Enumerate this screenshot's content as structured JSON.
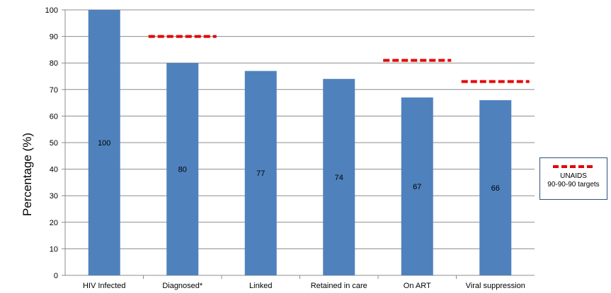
{
  "chart_data": {
    "type": "bar",
    "ylabel": "Percentage (%)",
    "ylim": [
      0,
      100
    ],
    "yticks": [
      "0",
      "10",
      "20",
      "30",
      "40",
      "50",
      "60",
      "70",
      "80",
      "90",
      "100"
    ],
    "categories": [
      "HIV Infected",
      "Diagnosed*",
      "Linked",
      "Retained in care",
      "On ART",
      "Viral suppression"
    ],
    "values": [
      100,
      80,
      77,
      74,
      67,
      66
    ],
    "data_labels": [
      "100",
      "80",
      "77",
      "74",
      "67",
      "66"
    ],
    "bar_color": "#4f81bd",
    "targets": [
      {
        "category": "Diagnosed*",
        "value": 90
      },
      {
        "category": "On ART",
        "value": 81
      },
      {
        "category": "Viral suppression",
        "value": 73
      }
    ],
    "target_color": "#e30000",
    "grid": true,
    "legend": {
      "position": "right",
      "line1": "UNAIDS",
      "line2": "90-90-90 targets"
    }
  }
}
